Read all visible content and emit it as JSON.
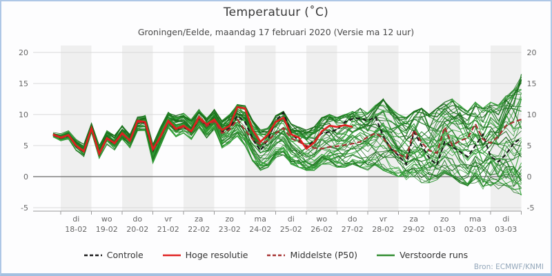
{
  "header": {
    "title": "Temperatuur (˚C)",
    "subtitle": "Groningen/Eelde, maandag 17 februari 2020 (Versie ma 12 uur)"
  },
  "footer": {
    "source": "Bron: ECMWF/KNMI"
  },
  "legend": [
    {
      "label": "Controle",
      "color": "#1a1a1a",
      "dash": "5,3"
    },
    {
      "label": "Hoge resolutie",
      "color": "#e02020",
      "dash": ""
    },
    {
      "label": "Middelste (P50)",
      "color": "#a53030",
      "dash": "5,3"
    },
    {
      "label": "Verstoorde runs",
      "color": "#2e8b2e",
      "dash": ""
    }
  ],
  "chart_data": {
    "type": "line",
    "title": "Temperatuur (˚C)",
    "subtitle": "Groningen/Eelde, maandag 17 februari 2020 (Versie ma 12 uur)",
    "source": "Bron: ECMWF/KNMI",
    "ylabel": "",
    "ylim": [
      -5.6,
      21.1
    ],
    "yticks": [
      20,
      15,
      10,
      5,
      0,
      -5
    ],
    "grid": "horizontal",
    "legend_position": "bottom",
    "legend_entries": [
      "Controle",
      "Hoge resolutie",
      "Middelste (P50)",
      "Verstoorde runs"
    ],
    "hours_per_step": 6,
    "x_day_labels": [
      {
        "weekday": "di",
        "date": "18-02"
      },
      {
        "weekday": "wo",
        "date": "19-02"
      },
      {
        "weekday": "do",
        "date": "20-02"
      },
      {
        "weekday": "vr",
        "date": "21-02"
      },
      {
        "weekday": "za",
        "date": "22-02"
      },
      {
        "weekday": "zo",
        "date": "23-02"
      },
      {
        "weekday": "ma",
        "date": "24-02"
      },
      {
        "weekday": "di",
        "date": "25-02"
      },
      {
        "weekday": "wo",
        "date": "26-02"
      },
      {
        "weekday": "do",
        "date": "27-02"
      },
      {
        "weekday": "vr",
        "date": "28-02"
      },
      {
        "weekday": "za",
        "date": "29-02"
      },
      {
        "weekday": "zo",
        "date": "01-03"
      },
      {
        "weekday": "ma",
        "date": "02-03"
      },
      {
        "weekday": "di",
        "date": "03-03"
      }
    ],
    "shaded_day_indices": [
      0,
      2,
      4,
      6,
      8,
      10,
      12,
      14
    ],
    "series": [
      {
        "name": "Controle",
        "style": "dashed",
        "color": "#1a1a1a",
        "values": [
          6.7,
          6.2,
          6.6,
          4.9,
          4.0,
          7.7,
          3.6,
          6.1,
          5.3,
          6.9,
          5.7,
          8.8,
          8.6,
          4.2,
          6.4,
          8.8,
          7.6,
          8.0,
          7.2,
          9.4,
          8.2,
          9.0,
          7.2,
          7.8,
          9.8,
          8.8,
          6.0,
          4.2,
          6.0,
          9.0,
          10.3,
          7.0,
          5.8,
          4.8,
          5.8,
          7.0,
          7.2,
          7.6,
          8.8,
          9.3,
          9.4,
          9.0,
          9.6,
          6.5,
          4.5,
          3.4,
          2.0,
          7.2,
          5.0,
          3.0,
          1.9,
          5.6,
          4.8,
          4.0,
          3.2,
          5.0,
          6.8,
          3.2,
          2.4,
          3.6,
          5.4,
          6.2
        ]
      },
      {
        "name": "Hoge resolutie",
        "style": "solid",
        "color": "#e02020",
        "values": [
          6.8,
          6.3,
          6.7,
          5.0,
          4.1,
          7.8,
          3.7,
          6.2,
          5.4,
          7.0,
          5.8,
          9.0,
          8.8,
          4.4,
          6.5,
          9.0,
          7.7,
          8.2,
          7.3,
          9.6,
          8.4,
          9.2,
          7.5,
          8.2,
          11.2,
          11.0,
          7.5,
          5.6,
          6.8,
          8.8,
          9.5,
          6.8,
          6.3,
          4.5,
          5.5,
          7.3,
          8.2,
          8.0,
          8.3,
          8.0
        ]
      },
      {
        "name": "Middelste (P50)",
        "style": "dashed",
        "color": "#a53030",
        "values": [
          6.7,
          6.2,
          6.6,
          4.9,
          4.0,
          7.7,
          3.6,
          6.1,
          5.3,
          6.9,
          5.7,
          8.8,
          8.6,
          4.2,
          6.4,
          8.8,
          7.6,
          8.0,
          7.2,
          9.3,
          8.1,
          8.9,
          7.0,
          7.6,
          9.2,
          7.5,
          6.0,
          5.2,
          5.8,
          7.0,
          7.8,
          6.2,
          5.6,
          5.0,
          4.6,
          4.5,
          4.8,
          4.9,
          5.1,
          5.3,
          5.6,
          6.4,
          7.0,
          6.2,
          4.6,
          3.6,
          3.0,
          7.5,
          5.5,
          4.2,
          3.8,
          8.0,
          5.0,
          5.8,
          6.2,
          8.5,
          6.0,
          5.4,
          6.5,
          8.2,
          8.8,
          9.2
        ]
      },
      {
        "name": "Verstoorde runs",
        "style": "solid",
        "color": "#2e8b2e",
        "count": 50,
        "seed": 20200217,
        "envelope_min": [
          6.2,
          5.6,
          5.9,
          4.2,
          3.2,
          6.8,
          2.6,
          5.2,
          4.2,
          5.8,
          4.6,
          7.4,
          7.4,
          2.2,
          5.0,
          7.8,
          6.4,
          7.0,
          6.0,
          7.8,
          6.2,
          7.6,
          4.6,
          5.4,
          6.5,
          5.0,
          2.5,
          1.0,
          1.5,
          3.0,
          3.5,
          2.0,
          1.5,
          1.0,
          1.0,
          2.0,
          2.0,
          1.5,
          1.5,
          2.0,
          1.5,
          1.0,
          1.5,
          1.0,
          0.5,
          0.0,
          -0.5,
          0.0,
          -1.0,
          -1.0,
          -0.5,
          0.5,
          0.0,
          -1.0,
          -1.5,
          -1.0,
          -2.0,
          -1.5,
          -2.0,
          -1.5,
          -2.5,
          -3.0
        ],
        "envelope_max": [
          7.2,
          7.0,
          7.4,
          6.0,
          5.2,
          8.6,
          5.0,
          7.4,
          6.6,
          8.2,
          6.8,
          9.6,
          9.9,
          5.2,
          8.0,
          10.4,
          9.8,
          10.2,
          9.2,
          10.8,
          9.4,
          10.8,
          9.0,
          10.0,
          11.6,
          11.4,
          9.0,
          7.5,
          8.0,
          9.8,
          10.5,
          8.5,
          8.0,
          7.5,
          8.0,
          9.5,
          10.0,
          9.5,
          10.0,
          10.5,
          11.0,
          10.5,
          11.5,
          12.5,
          11.0,
          10.0,
          9.5,
          10.5,
          11.0,
          10.0,
          11.0,
          12.0,
          12.5,
          11.5,
          10.5,
          12.0,
          11.0,
          12.0,
          11.5,
          13.0,
          14.0,
          16.5
        ]
      }
    ]
  }
}
